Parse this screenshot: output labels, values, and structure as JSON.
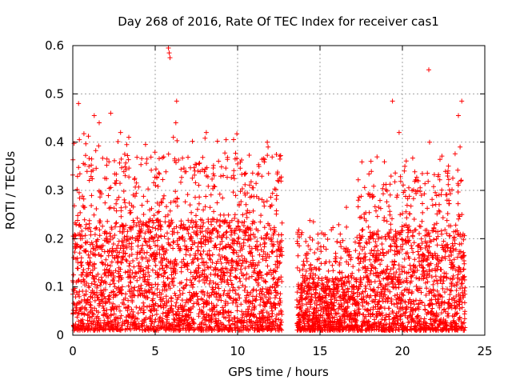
{
  "chart_data": {
    "type": "scatter",
    "title": "Day 268 of 2016, Rate Of TEC Index for receiver cas1",
    "xlabel": "GPS time / hours",
    "ylabel": "ROTI / TECUs",
    "xlim": [
      0,
      25
    ],
    "ylim": [
      0,
      0.6
    ],
    "xticks": [
      0,
      5,
      10,
      15,
      20,
      25
    ],
    "yticks": [
      0,
      0.1,
      0.2,
      0.3,
      0.4,
      0.5,
      0.6
    ],
    "xtick_labels": [
      "0",
      "5",
      "10",
      "15",
      "20",
      "25"
    ],
    "ytick_labels": [
      "0",
      "0.1",
      "0.2",
      "0.3",
      "0.4",
      "0.5",
      "0.6"
    ],
    "grid": true,
    "marker": "+",
    "color": "#ff0000",
    "series": [
      {
        "name": "ROTI",
        "segments": [
          {
            "t_start": 0.0,
            "t_end": 12.7,
            "step": 0.0125,
            "typical_max": 0.24,
            "peak_max": 0.42,
            "floor": 0.01
          },
          {
            "t_start": 13.6,
            "t_end": 17.3,
            "step": 0.0125,
            "typical_max": 0.12,
            "peak_max": 0.24,
            "floor": 0.01
          },
          {
            "t_start": 17.3,
            "t_end": 23.8,
            "step": 0.0125,
            "typical_max": 0.22,
            "peak_max": 0.38,
            "floor": 0.01
          }
        ],
        "outliers": [
          {
            "x": 0.35,
            "y": 0.48
          },
          {
            "x": 0.4,
            "y": 0.405
          },
          {
            "x": 1.3,
            "y": 0.455
          },
          {
            "x": 1.6,
            "y": 0.44
          },
          {
            "x": 2.3,
            "y": 0.46
          },
          {
            "x": 2.9,
            "y": 0.42
          },
          {
            "x": 3.4,
            "y": 0.41
          },
          {
            "x": 5.8,
            "y": 0.595
          },
          {
            "x": 5.85,
            "y": 0.585
          },
          {
            "x": 5.9,
            "y": 0.575
          },
          {
            "x": 6.3,
            "y": 0.485
          },
          {
            "x": 6.25,
            "y": 0.44
          },
          {
            "x": 6.1,
            "y": 0.41
          },
          {
            "x": 8.1,
            "y": 0.42
          },
          {
            "x": 9.3,
            "y": 0.405
          },
          {
            "x": 11.8,
            "y": 0.4
          },
          {
            "x": 11.85,
            "y": 0.39
          },
          {
            "x": 19.4,
            "y": 0.485
          },
          {
            "x": 19.8,
            "y": 0.42
          },
          {
            "x": 21.6,
            "y": 0.55
          },
          {
            "x": 21.65,
            "y": 0.4
          },
          {
            "x": 23.4,
            "y": 0.455
          },
          {
            "x": 23.6,
            "y": 0.485
          },
          {
            "x": 23.5,
            "y": 0.39
          },
          {
            "x": 23.7,
            "y": 0.01
          },
          {
            "x": 16.6,
            "y": 0.265
          },
          {
            "x": 14.6,
            "y": 0.235
          }
        ]
      }
    ]
  }
}
